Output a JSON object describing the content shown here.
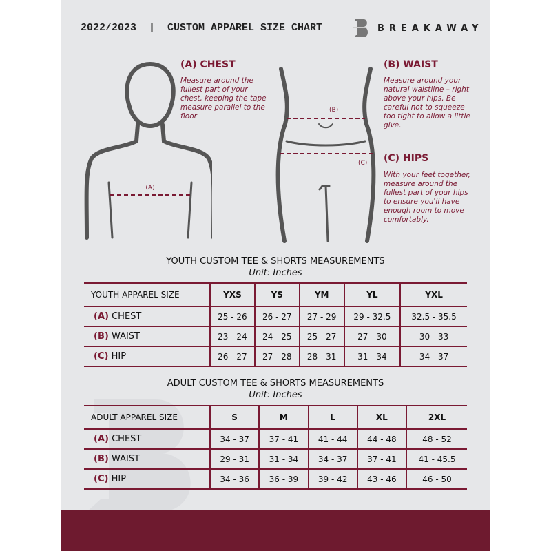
{
  "header": {
    "title": "2022/2023  |  CUSTOM APPAREL SIZE CHART",
    "brand": "BREAKAWAY"
  },
  "measures": {
    "chest": {
      "title": "(A) CHEST",
      "desc": "Measure around the fullest part of your chest, keeping the tape measure parallel to the floor",
      "marker": "(A)"
    },
    "waist": {
      "title": "(B) WAIST",
      "desc": "Measure around your natural waistline – right above your hips. Be careful not to squeeze too tight to allow a little give.",
      "marker": "(B)"
    },
    "hips": {
      "title": "(C) HIPS",
      "desc": "With your feet together, measure around the fullest part of your hips to ensure you'll have enough room to move comfortably.",
      "marker": "(C)"
    }
  },
  "youth": {
    "title": "YOUTH CUSTOM TEE & SHORTS MEASUREMENTS",
    "unit": "Unit: Inches",
    "size_label": "YOUTH APPAREL SIZE",
    "sizes": [
      "YXS",
      "YS",
      "YM",
      "YL",
      "YXL"
    ],
    "rows": [
      {
        "code": "(A)",
        "name": "CHEST",
        "values": [
          "25 - 26",
          "26 - 27",
          "27 - 29",
          "29 - 32.5",
          "32.5 - 35.5"
        ]
      },
      {
        "code": "(B)",
        "name": "WAIST",
        "values": [
          "23 - 24",
          "24 - 25",
          "25 - 27",
          "27 - 30",
          "30 - 33"
        ]
      },
      {
        "code": "(C)",
        "name": "HIP",
        "values": [
          "26 - 27",
          "27 - 28",
          "28 - 31",
          "31 - 34",
          "34 - 37"
        ]
      }
    ]
  },
  "adult": {
    "title": "ADULT CUSTOM TEE & SHORTS MEASUREMENTS",
    "unit": "Unit: Inches",
    "size_label": "ADULT APPAREL SIZE",
    "sizes": [
      "S",
      "M",
      "L",
      "XL",
      "2XL"
    ],
    "rows": [
      {
        "code": "(A)",
        "name": "CHEST",
        "values": [
          "34 - 37",
          "37 - 41",
          "41 - 44",
          "44 - 48",
          "48 - 52"
        ]
      },
      {
        "code": "(B)",
        "name": "WAIST",
        "values": [
          "29 - 31",
          "31 - 34",
          "34 - 37",
          "37 - 41",
          "41 - 45.5"
        ]
      },
      {
        "code": "(C)",
        "name": "HIP",
        "values": [
          "34 - 36",
          "36 - 39",
          "39 - 42",
          "43 - 46",
          "46 - 50"
        ]
      }
    ]
  },
  "colors": {
    "accent": "#7a1a33",
    "background": "#e6e7e9",
    "footer": "#6e1a2f"
  }
}
